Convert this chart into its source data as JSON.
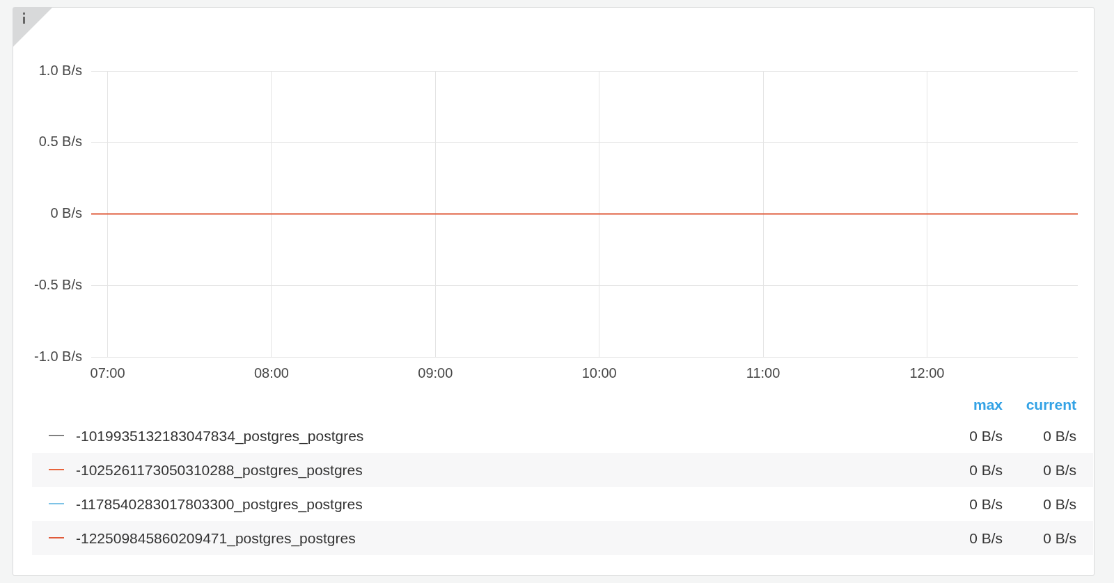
{
  "chart_data": {
    "type": "line",
    "x": [
      6.9,
      12.92
    ],
    "series": [
      {
        "name": "-1019935132183047834_postgres_postgres",
        "color": "#808080",
        "values": [
          null,
          null
        ]
      },
      {
        "name": "-1025261173050310288_postgres_postgres",
        "color": "#e8643c",
        "values": [
          null,
          null
        ]
      },
      {
        "name": "-1178540283017803300_postgres_postgres",
        "color": "#7ec3e6",
        "values": [
          null,
          null
        ]
      },
      {
        "name": "-122509845860209471_postgres_postgres",
        "color": "#e05a3a",
        "values": [
          0,
          0
        ]
      }
    ],
    "xlim": [
      6.9,
      12.92
    ],
    "xticks": [
      {
        "value": 7,
        "label": "07:00"
      },
      {
        "value": 8,
        "label": "08:00"
      },
      {
        "value": 9,
        "label": "09:00"
      },
      {
        "value": 10,
        "label": "10:00"
      },
      {
        "value": 11,
        "label": "11:00"
      },
      {
        "value": 12,
        "label": "12:00"
      }
    ],
    "ylim": [
      -1,
      1
    ],
    "yticks": [
      {
        "value": -1,
        "label": "-1.0 B/s"
      },
      {
        "value": -0.5,
        "label": "-0.5 B/s"
      },
      {
        "value": 0,
        "label": "0 B/s"
      },
      {
        "value": 0.5,
        "label": "0.5 B/s"
      },
      {
        "value": 1,
        "label": "1.0 B/s"
      }
    ],
    "grid": true,
    "legend": "bottom",
    "marker": "none",
    "line_style": "solid",
    "annotations": [
      "max",
      "current",
      "0 B/s",
      "0 B/s",
      "0 B/s",
      "0 B/s",
      "0 B/s",
      "0 B/s",
      "0 B/s",
      "0 B/s"
    ]
  }
}
